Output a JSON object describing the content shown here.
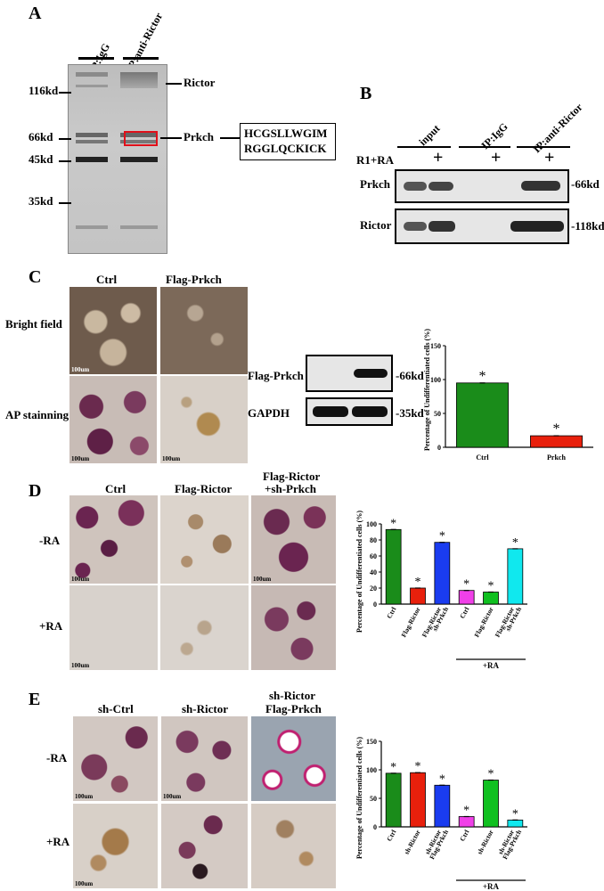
{
  "panels": {
    "A": {
      "letter": "A",
      "lanes": [
        "IP:IgG",
        "IP:anti-Rictor"
      ],
      "mw": [
        "116kd",
        "66kd",
        "45kd",
        "35kd"
      ],
      "band_labels": [
        "Rictor",
        "Prkch"
      ],
      "peptide": [
        "HCGSLLWGIM",
        "RGGLQCKICK"
      ]
    },
    "B": {
      "letter": "B",
      "headers": [
        "input",
        "IP:IgG",
        "IP:anti-Rictor"
      ],
      "treatment": "R1+RA",
      "plus": "+",
      "rows": [
        "Prkch",
        "Rictor"
      ],
      "sizes": [
        "-66kd",
        "-118kd"
      ]
    },
    "C": {
      "letter": "C",
      "cols": [
        "Ctrl",
        "Flag-Prkch"
      ],
      "rows": [
        "Bright field",
        "AP stainning"
      ],
      "scale": "100um",
      "blot_rows": [
        "Flag-Prkch",
        "GAPDH"
      ],
      "blot_sizes": [
        "-66kd",
        "-35kd"
      ]
    },
    "D": {
      "letter": "D",
      "cols": [
        "Ctrl",
        "Flag-Rictor",
        "Flag-Rictor",
        "+sh-Prkch"
      ],
      "rows": [
        "-RA",
        "+RA"
      ],
      "scale": "100um"
    },
    "E": {
      "letter": "E",
      "cols": [
        "sh-Ctrl",
        "sh-Rictor",
        "sh-Rictor",
        "Flag-Prkch"
      ],
      "rows": [
        "-RA",
        "+RA"
      ],
      "scale": "100um"
    }
  },
  "chart_data": [
    {
      "type": "bar",
      "ylabel": "Percentage of Undifferentiated cells (%)",
      "categories": [
        "Ctrl",
        "Prkch"
      ],
      "values": [
        95,
        17
      ],
      "colors": [
        "#1a8c1a",
        "#e8200c"
      ],
      "ylim": [
        0,
        150
      ],
      "yticks": [
        0,
        50,
        100,
        150
      ],
      "annotation": "*"
    },
    {
      "type": "bar",
      "ylabel": "Percentage of Undifferentiated cells (%)",
      "categories": [
        "Ctrl",
        "Flag-Rictor",
        "Flag-Rictor sh-Prkch",
        "Ctrl",
        "Flag-Rictor",
        "Flag-Rictor sh-Prkch"
      ],
      "values": [
        93,
        20,
        77,
        17,
        15,
        69
      ],
      "colors": [
        "#1a8c1a",
        "#e8200c",
        "#1a3cf0",
        "#f040e8",
        "#10c020",
        "#10e8ee"
      ],
      "ylim": [
        0,
        100
      ],
      "yticks": [
        0,
        20,
        40,
        60,
        80,
        100
      ],
      "group_label": "+RA",
      "annotation": "*"
    },
    {
      "type": "bar",
      "ylabel": "Percentage of Undifferentiated cells (%)",
      "categories": [
        "Ctrl",
        "sh-Rictor",
        "sh-Rictor Flag-Prkch",
        "Ctrl",
        "sh-Rictor",
        "sh-Rictor Flag-Prkch"
      ],
      "values": [
        94,
        95,
        73,
        18,
        82,
        12
      ],
      "colors": [
        "#1a8c1a",
        "#e8200c",
        "#1a3cf0",
        "#f040e8",
        "#10c020",
        "#10e8ee"
      ],
      "ylim": [
        0,
        150
      ],
      "yticks": [
        0,
        50,
        100,
        150
      ],
      "group_label": "+RA",
      "annotation": "*"
    }
  ]
}
